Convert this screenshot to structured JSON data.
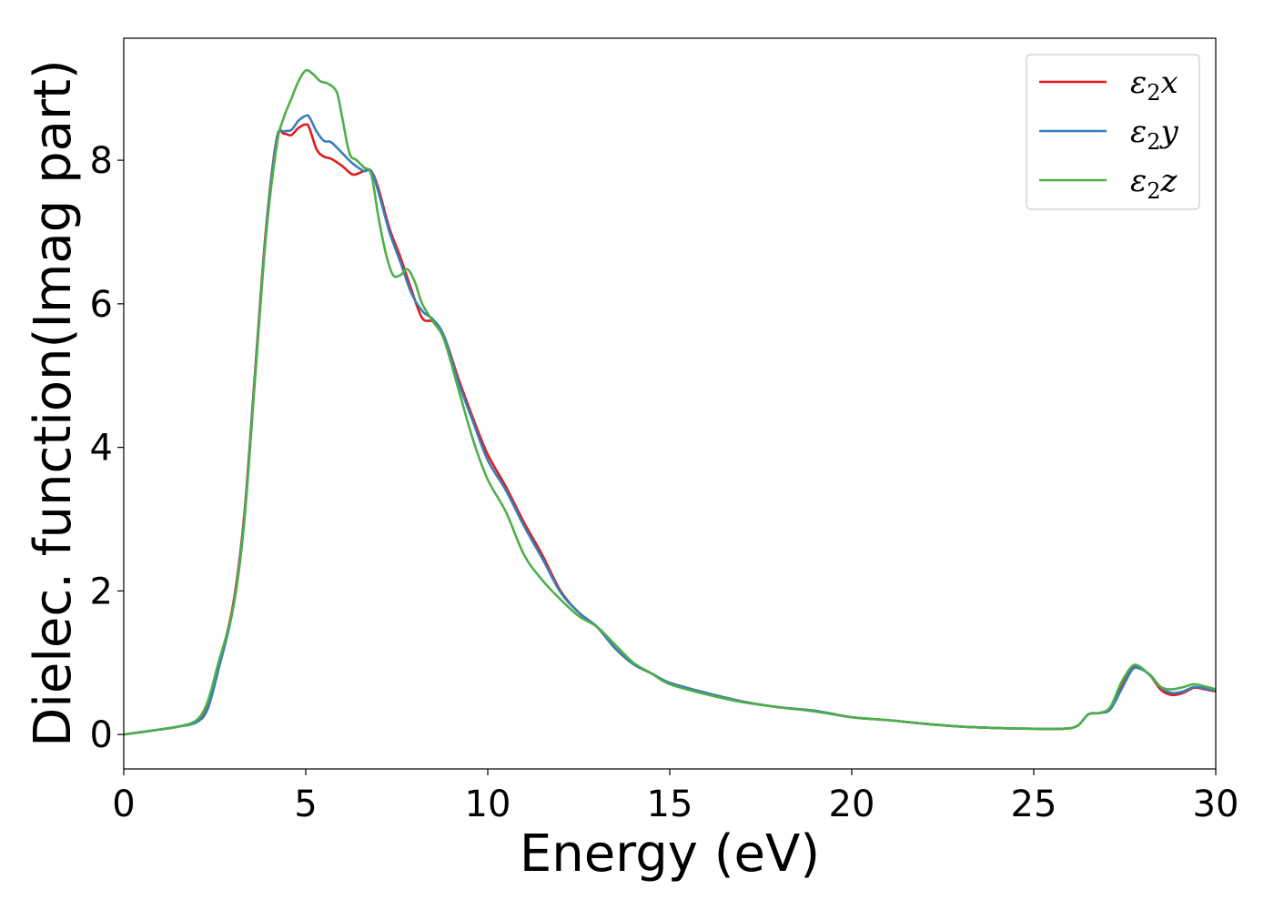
{
  "chart_data": {
    "type": "line",
    "title": "",
    "xlabel": "Energy (eV)",
    "ylabel": "Dielec. function(Imag part)",
    "xlim": [
      0,
      30
    ],
    "ylim": [
      -0.48,
      9.7
    ],
    "xticks": [
      0,
      5,
      10,
      15,
      20,
      25,
      30
    ],
    "yticks": [
      0,
      2,
      4,
      6,
      8
    ],
    "grid": false,
    "legend_position": "top-right",
    "series": [
      {
        "name": "ε2x",
        "name_base": "ε",
        "name_sub": "2",
        "name_tail": "x",
        "color": "#e41a1c",
        "x": [
          0,
          1,
          1.5,
          2,
          2.3,
          2.6,
          3,
          3.3,
          3.6,
          3.9,
          4.2,
          4.4,
          4.6,
          4.8,
          5.0,
          5.1,
          5.3,
          5.5,
          5.7,
          6.0,
          6.3,
          6.6,
          6.8,
          7.0,
          7.3,
          7.6,
          7.9,
          8.2,
          8.5,
          8.8,
          9.2,
          9.6,
          10.0,
          10.5,
          11.0,
          11.5,
          12.0,
          12.5,
          13.0,
          13.5,
          14.0,
          14.5,
          15.0,
          16.0,
          17.0,
          18.0,
          19.0,
          20.0,
          21.0,
          22.0,
          23.0,
          24.0,
          25.0,
          25.8,
          26.2,
          26.5,
          26.8,
          27.1,
          27.4,
          27.7,
          27.9,
          28.2,
          28.5,
          28.8,
          29.1,
          29.4,
          29.7,
          30.0
        ],
        "y": [
          0.0,
          0.07,
          0.11,
          0.18,
          0.4,
          0.95,
          1.8,
          3.0,
          5.0,
          7.0,
          8.3,
          8.37,
          8.35,
          8.45,
          8.5,
          8.45,
          8.15,
          8.05,
          8.02,
          7.92,
          7.8,
          7.85,
          7.85,
          7.6,
          7.05,
          6.65,
          6.2,
          5.8,
          5.75,
          5.55,
          4.95,
          4.4,
          3.9,
          3.45,
          2.95,
          2.5,
          2.0,
          1.7,
          1.5,
          1.2,
          0.98,
          0.85,
          0.72,
          0.58,
          0.46,
          0.38,
          0.33,
          0.24,
          0.2,
          0.15,
          0.11,
          0.09,
          0.08,
          0.08,
          0.12,
          0.28,
          0.3,
          0.35,
          0.65,
          0.93,
          0.93,
          0.82,
          0.62,
          0.55,
          0.58,
          0.65,
          0.63,
          0.6
        ]
      },
      {
        "name": "ε2y",
        "name_base": "ε",
        "name_sub": "2",
        "name_tail": "y",
        "color": "#377eb8",
        "x": [
          0,
          1,
          1.5,
          2,
          2.3,
          2.6,
          3,
          3.3,
          3.6,
          3.9,
          4.2,
          4.4,
          4.6,
          4.8,
          5.0,
          5.1,
          5.3,
          5.5,
          5.7,
          6.0,
          6.3,
          6.6,
          6.8,
          7.0,
          7.3,
          7.6,
          7.9,
          8.2,
          8.5,
          8.8,
          9.2,
          9.6,
          10.0,
          10.5,
          11.0,
          11.5,
          12.0,
          12.5,
          13.0,
          13.5,
          14.0,
          14.5,
          15.0,
          16.0,
          17.0,
          18.0,
          19.0,
          20.0,
          21.0,
          22.0,
          23.0,
          24.0,
          25.0,
          25.8,
          26.2,
          26.5,
          26.8,
          27.1,
          27.4,
          27.7,
          27.9,
          28.2,
          28.5,
          28.8,
          29.1,
          29.4,
          29.7,
          30.0
        ],
        "y": [
          0.0,
          0.07,
          0.11,
          0.17,
          0.35,
          0.9,
          1.75,
          2.95,
          4.95,
          6.95,
          8.28,
          8.4,
          8.42,
          8.55,
          8.62,
          8.6,
          8.4,
          8.27,
          8.25,
          8.1,
          7.95,
          7.85,
          7.85,
          7.55,
          7.0,
          6.58,
          6.15,
          5.9,
          5.78,
          5.55,
          4.9,
          4.35,
          3.82,
          3.4,
          2.9,
          2.45,
          1.98,
          1.7,
          1.5,
          1.2,
          0.98,
          0.85,
          0.72,
          0.58,
          0.46,
          0.38,
          0.33,
          0.24,
          0.2,
          0.15,
          0.11,
          0.09,
          0.08,
          0.08,
          0.12,
          0.28,
          0.3,
          0.35,
          0.62,
          0.9,
          0.92,
          0.83,
          0.65,
          0.58,
          0.6,
          0.66,
          0.64,
          0.61
        ]
      },
      {
        "name": "ε2z",
        "name_base": "ε",
        "name_sub": "2",
        "name_tail": "z",
        "color": "#4daf4a",
        "x": [
          0,
          1,
          1.5,
          2,
          2.3,
          2.6,
          3,
          3.3,
          3.6,
          3.9,
          4.2,
          4.4,
          4.6,
          4.8,
          5.0,
          5.2,
          5.4,
          5.6,
          5.85,
          6.0,
          6.2,
          6.4,
          6.6,
          6.8,
          7.0,
          7.2,
          7.4,
          7.6,
          7.8,
          8.0,
          8.2,
          8.5,
          8.8,
          9.2,
          9.6,
          10.0,
          10.5,
          11.0,
          11.5,
          12.0,
          12.5,
          13.0,
          13.5,
          14.0,
          14.5,
          15.0,
          16.0,
          17.0,
          18.0,
          19.0,
          20.0,
          21.0,
          22.0,
          23.0,
          24.0,
          25.0,
          25.8,
          26.2,
          26.5,
          26.8,
          27.1,
          27.4,
          27.7,
          27.9,
          28.2,
          28.5,
          28.8,
          29.1,
          29.4,
          29.7,
          30.0
        ],
        "y": [
          0.0,
          0.07,
          0.11,
          0.2,
          0.45,
          1.0,
          1.75,
          2.9,
          4.9,
          6.9,
          8.2,
          8.6,
          8.85,
          9.1,
          9.25,
          9.2,
          9.1,
          9.07,
          8.95,
          8.6,
          8.1,
          8.0,
          7.9,
          7.8,
          7.2,
          6.7,
          6.4,
          6.4,
          6.48,
          6.3,
          6.0,
          5.75,
          5.5,
          4.8,
          4.1,
          3.55,
          3.1,
          2.5,
          2.15,
          1.88,
          1.65,
          1.5,
          1.25,
          1.0,
          0.85,
          0.7,
          0.56,
          0.45,
          0.38,
          0.32,
          0.24,
          0.2,
          0.15,
          0.11,
          0.09,
          0.08,
          0.08,
          0.12,
          0.28,
          0.3,
          0.38,
          0.72,
          0.95,
          0.95,
          0.82,
          0.66,
          0.63,
          0.66,
          0.7,
          0.67,
          0.63
        ]
      }
    ]
  }
}
